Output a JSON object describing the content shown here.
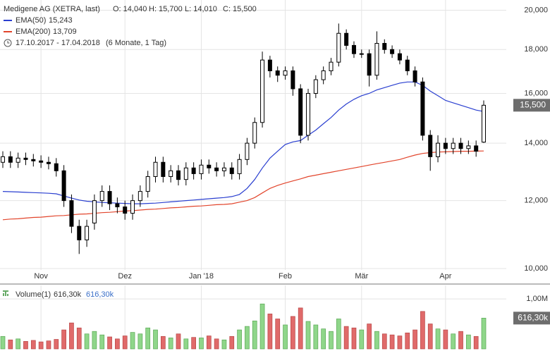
{
  "chart_data": {
    "type": "candlestick",
    "title": "Medigene AG (XETRA, last)",
    "ohlc_labels": [
      "O: 14,040",
      "H: 15,700",
      "L: 14,010",
      "C: 15,500"
    ],
    "period": "17.10.2017 - 17.04.2018",
    "period_note": "(6 Monate, 1 Tag)",
    "last_label": "15,500",
    "log_scale": true,
    "grid": true,
    "up_color": "#ffffff",
    "down_color": "#000000",
    "ylim": [
      9963,
      20558
    ],
    "yticks": [
      {
        "value": 10000,
        "label": "10,000"
      },
      {
        "value": 12000,
        "label": "12,000"
      },
      {
        "value": 14000,
        "label": "14,000"
      },
      {
        "value": 16000,
        "label": "16,000"
      },
      {
        "value": 18000,
        "label": "18,000"
      },
      {
        "value": 20000,
        "label": "20,000"
      }
    ],
    "categories": [
      null,
      null,
      null,
      null,
      null,
      "Nov",
      null,
      null,
      null,
      null,
      null,
      null,
      null,
      null,
      null,
      null,
      "Dez",
      null,
      null,
      null,
      null,
      null,
      null,
      null,
      null,
      null,
      "Jan '18",
      null,
      null,
      null,
      null,
      null,
      null,
      null,
      null,
      null,
      null,
      "Feb",
      null,
      null,
      null,
      null,
      null,
      null,
      null,
      null,
      null,
      "Mär",
      null,
      null,
      null,
      null,
      null,
      null,
      null,
      null,
      null,
      null,
      "Apr",
      null,
      null,
      null,
      null,
      null
    ],
    "candles": {
      "open": [
        13300,
        13500,
        13300,
        13450,
        13400,
        13350,
        13300,
        13250,
        13000,
        12000,
        11200,
        10800,
        11300,
        12000,
        12300,
        11900,
        11800,
        11600,
        12000,
        12300,
        12800,
        13300,
        12800,
        13000,
        12700,
        13100,
        12900,
        13200,
        13100,
        13000,
        13100,
        12900,
        13400,
        14000,
        14800,
        17500,
        17000,
        16800,
        17000,
        16200,
        14300,
        16000,
        16600,
        17000,
        17400,
        18800,
        18200,
        17800,
        17800,
        16800,
        18300,
        18000,
        17800,
        17500,
        17000,
        16500,
        14300,
        13500,
        14000,
        13800,
        14000,
        13800,
        13900,
        14040
      ],
      "high": [
        13700,
        13700,
        13650,
        13650,
        13600,
        13550,
        13500,
        13450,
        13200,
        12200,
        11400,
        11400,
        12200,
        12500,
        12500,
        12100,
        12000,
        12200,
        12500,
        13000,
        13500,
        13500,
        13200,
        13200,
        13300,
        13300,
        13400,
        13400,
        13300,
        13300,
        13300,
        13600,
        14200,
        15000,
        17900,
        17700,
        17200,
        17200,
        17200,
        16400,
        16200,
        16800,
        17200,
        17600,
        19300,
        19000,
        18400,
        18000,
        18000,
        18900,
        18500,
        18200,
        18000,
        17700,
        17200,
        16700,
        14500,
        14300,
        14200,
        14200,
        14200,
        14100,
        14100,
        15700
      ],
      "low": [
        13100,
        13100,
        13100,
        13200,
        13150,
        13100,
        13050,
        12800,
        11800,
        11000,
        10400,
        10600,
        11100,
        11800,
        11700,
        11600,
        11400,
        11400,
        11800,
        12100,
        12600,
        12600,
        12600,
        12500,
        12500,
        12700,
        12700,
        12900,
        12800,
        12800,
        12700,
        12700,
        13200,
        13800,
        14600,
        16700,
        16500,
        16600,
        15900,
        14000,
        14100,
        15800,
        16400,
        16800,
        17200,
        18000,
        17600,
        17600,
        16300,
        16600,
        17800,
        17600,
        17300,
        16800,
        16300,
        14100,
        13000,
        13300,
        13600,
        13600,
        13600,
        13600,
        13500,
        14010
      ],
      "close": [
        13500,
        13300,
        13450,
        13400,
        13350,
        13300,
        13250,
        13000,
        12000,
        11200,
        10800,
        11200,
        12000,
        12300,
        11900,
        11800,
        11600,
        12000,
        12300,
        12800,
        13300,
        12800,
        13000,
        12700,
        13100,
        12900,
        13200,
        13100,
        13000,
        13100,
        12900,
        13400,
        14000,
        14800,
        17500,
        17000,
        16800,
        17000,
        16200,
        14300,
        16000,
        16600,
        17000,
        17400,
        18800,
        18200,
        17800,
        17800,
        16800,
        18300,
        18000,
        17800,
        17500,
        17000,
        16500,
        14300,
        13500,
        14000,
        13800,
        14000,
        13800,
        13900,
        13700,
        15500
      ]
    },
    "series": [
      {
        "name": "EMA(50)",
        "color": "#2a3fd0",
        "value_label": "15,243",
        "values": [
          12300,
          12290,
          12280,
          12270,
          12260,
          12250,
          12240,
          12220,
          12150,
          12080,
          12020,
          11980,
          11960,
          11940,
          11930,
          11920,
          11910,
          11900,
          11900,
          11910,
          11920,
          11940,
          11960,
          11980,
          12000,
          12020,
          12040,
          12060,
          12080,
          12100,
          12130,
          12200,
          12400,
          12700,
          13100,
          13450,
          13700,
          13950,
          14050,
          14100,
          14300,
          14500,
          14750,
          15000,
          15300,
          15550,
          15750,
          15900,
          16000,
          16150,
          16250,
          16350,
          16450,
          16500,
          16500,
          16350,
          16100,
          15900,
          15700,
          15600,
          15500,
          15400,
          15300,
          15243
        ]
      },
      {
        "name": "EMA(200)",
        "color": "#e2452c",
        "value_label": "13,709",
        "values": [
          11400,
          11420,
          11430,
          11450,
          11470,
          11480,
          11500,
          11520,
          11530,
          11550,
          11570,
          11580,
          11600,
          11620,
          11630,
          11650,
          11670,
          11680,
          11700,
          11720,
          11730,
          11750,
          11770,
          11780,
          11800,
          11820,
          11830,
          11850,
          11870,
          11880,
          11900,
          11950,
          12000,
          12100,
          12250,
          12400,
          12500,
          12580,
          12650,
          12720,
          12800,
          12850,
          12900,
          12950,
          13000,
          13050,
          13100,
          13150,
          13200,
          13250,
          13300,
          13350,
          13400,
          13480,
          13560,
          13620,
          13650,
          13670,
          13680,
          13690,
          13700,
          13700,
          13705,
          13709
        ]
      }
    ],
    "volume": {
      "name": "Volume(1)",
      "value_label": "616,30k",
      "up_color": "#8fd68a",
      "down_color": "#e06a6a",
      "label_color": "#3a6fc8",
      "ylim": [
        0,
        1270000
      ],
      "yticks": [
        {
          "value": 1000000,
          "label": "1,00M"
        }
      ],
      "values": [
        250000,
        180000,
        200000,
        150000,
        170000,
        140000,
        160000,
        190000,
        380000,
        520000,
        420000,
        300000,
        350000,
        280000,
        240000,
        200000,
        260000,
        330000,
        300000,
        420000,
        380000,
        250000,
        220000,
        300000,
        200000,
        230000,
        220000,
        260000,
        200000,
        180000,
        250000,
        380000,
        450000,
        560000,
        900000,
        700000,
        600000,
        480000,
        650000,
        820000,
        550000,
        480000,
        400000,
        350000,
        600000,
        450000,
        420000,
        380000,
        500000,
        350000,
        300000,
        280000,
        260000,
        320000,
        380000,
        750000,
        500000,
        400000,
        380000,
        300000,
        350000,
        280000,
        250000,
        616300
      ]
    }
  }
}
